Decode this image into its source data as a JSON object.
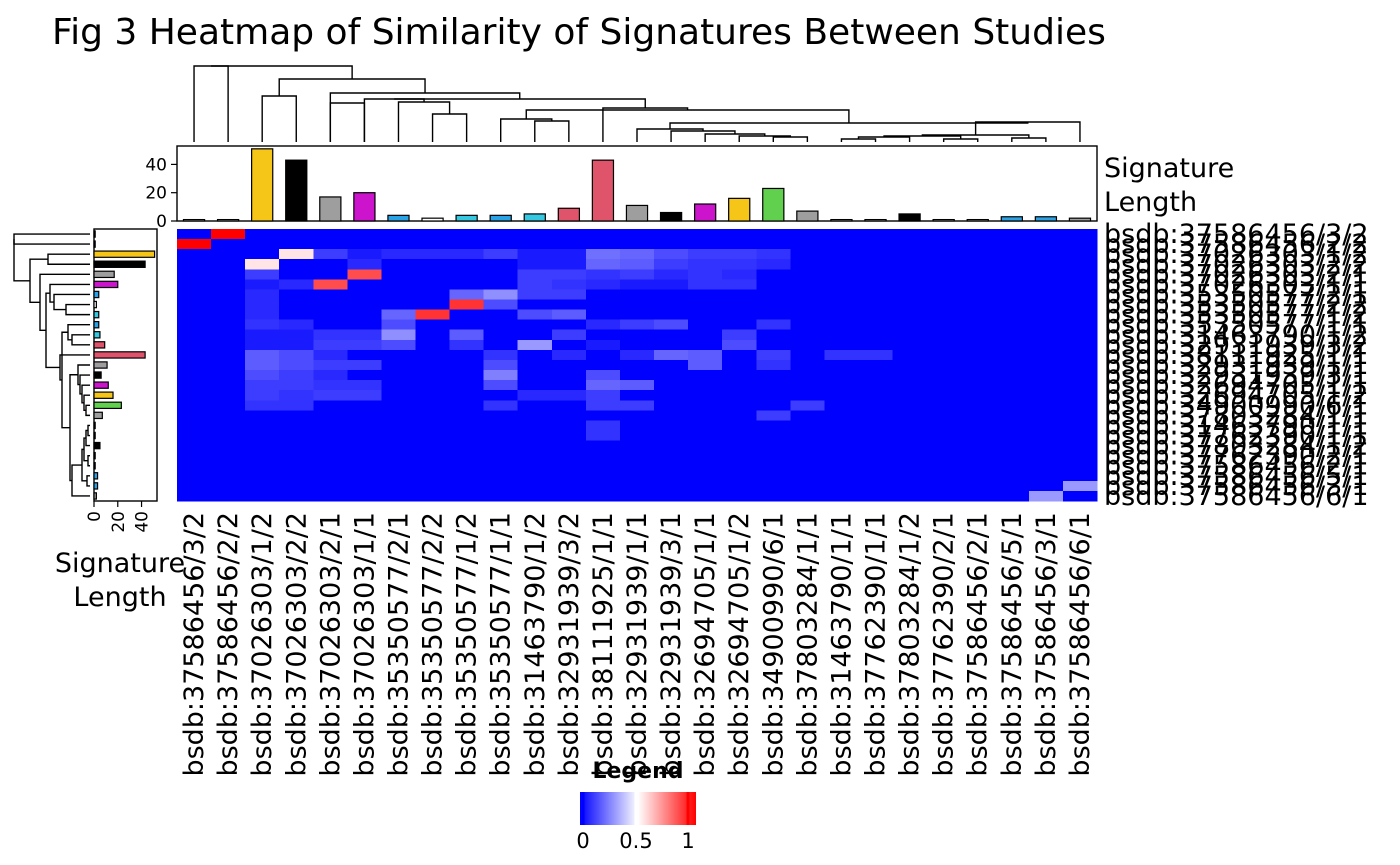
{
  "chart_data": {
    "type": "heatmap",
    "title": "Fig 3 Heatmap of Similarity of Signatures Between Studies",
    "columns": [
      "bsdb:37586456/3/2",
      "bsdb:37586456/2/2",
      "bsdb:37026303/1/2",
      "bsdb:37026303/2/2",
      "bsdb:37026303/2/1",
      "bsdb:37026303/1/1",
      "bsdb:35350577/2/1",
      "bsdb:35350577/2/2",
      "bsdb:35350577/1/2",
      "bsdb:35350577/1/1",
      "bsdb:31463790/1/2",
      "bsdb:32931939/3/2",
      "bsdb:38111925/1/1",
      "bsdb:32931939/1/1",
      "bsdb:32931939/3/1",
      "bsdb:32694705/1/1",
      "bsdb:32694705/1/2",
      "bsdb:34900990/6/1",
      "bsdb:37803284/1/1",
      "bsdb:31463790/1/1",
      "bsdb:37762390/1/1",
      "bsdb:37803284/1/2",
      "bsdb:37762390/2/1",
      "bsdb:37586456/2/1",
      "bsdb:37586456/5/1",
      "bsdb:37586456/3/1",
      "bsdb:37586456/6/1"
    ],
    "rows": [
      "bsdb:37586456/3/2",
      "bsdb:37586456/2/2",
      "bsdb:37026303/1/2",
      "bsdb:37026303/2/2",
      "bsdb:37026303/2/1",
      "bsdb:37026303/1/1",
      "bsdb:35350577/2/1",
      "bsdb:35350577/2/2",
      "bsdb:35350577/1/2",
      "bsdb:35350577/1/1",
      "bsdb:31463790/1/2",
      "bsdb:32931939/3/2",
      "bsdb:38111925/1/1",
      "bsdb:32931939/1/1",
      "bsdb:32931939/3/1",
      "bsdb:32694705/1/1",
      "bsdb:32694705/1/2",
      "bsdb:34900990/6/1",
      "bsdb:37803284/1/1",
      "bsdb:31463790/1/1",
      "bsdb:37762390/1/1",
      "bsdb:37803284/1/2",
      "bsdb:37762390/2/1",
      "bsdb:37586456/2/1",
      "bsdb:37586456/5/1",
      "bsdb:37586456/3/1",
      "bsdb:37586456/6/1"
    ],
    "signature_length": [
      1,
      1,
      51,
      43,
      17,
      20,
      4,
      2,
      4,
      4,
      5,
      9,
      43,
      11,
      6,
      12,
      16,
      23,
      7,
      1,
      1,
      5,
      1,
      1,
      3,
      3,
      2
    ],
    "signature_colors": [
      "#ffffff",
      "#ffffff",
      "#f5c518",
      "#000000",
      "#9e9e9e",
      "#cc14cc",
      "#2aa3e6",
      "#ffffff",
      "#35c8e0",
      "#2aa3e6",
      "#35c8e0",
      "#df536b",
      "#df536b",
      "#9e9e9e",
      "#000000",
      "#cc14cc",
      "#f5c518",
      "#61d04f",
      "#9e9e9e",
      "#ffffff",
      "#ffffff",
      "#000000",
      "#ffffff",
      "#ffffff",
      "#2aa3e6",
      "#2aa3e6",
      "#9e9e9e"
    ],
    "bar_axis": {
      "label": "Signature Length",
      "ticks": [
        0,
        20,
        40
      ],
      "max": 53
    },
    "similarity": [
      [
        0,
        1,
        0,
        0,
        0,
        0,
        0,
        0,
        0,
        0,
        0,
        0,
        0,
        0,
        0,
        0,
        0,
        0,
        0,
        0,
        0,
        0,
        0,
        0,
        0,
        0,
        0
      ],
      [
        1,
        0,
        0,
        0,
        0,
        0,
        0,
        0,
        0,
        0,
        0,
        0,
        0,
        0,
        0,
        0,
        0,
        0,
        0,
        0,
        0,
        0,
        0,
        0,
        0,
        0,
        0
      ],
      [
        0,
        0,
        0,
        0.55,
        0.12,
        0.05,
        0.08,
        0.08,
        0.08,
        0.12,
        0.05,
        0.05,
        0.22,
        0.2,
        0.15,
        0.12,
        0.12,
        0.1,
        0,
        0,
        0,
        0,
        0,
        0,
        0,
        0,
        0
      ],
      [
        0,
        0,
        0.55,
        0,
        0,
        0.08,
        0,
        0,
        0,
        0,
        0.05,
        0.05,
        0.2,
        0.18,
        0.12,
        0.1,
        0.1,
        0.08,
        0,
        0,
        0,
        0,
        0,
        0,
        0,
        0,
        0
      ],
      [
        0,
        0,
        0.12,
        0,
        0,
        0.85,
        0,
        0,
        0,
        0,
        0.12,
        0.12,
        0.1,
        0.12,
        0.08,
        0.1,
        0.08,
        0,
        0,
        0,
        0,
        0,
        0,
        0,
        0,
        0,
        0
      ],
      [
        0,
        0,
        0.05,
        0.08,
        0.85,
        0,
        0,
        0,
        0,
        0,
        0.12,
        0.1,
        0.08,
        0.05,
        0.05,
        0.1,
        0.1,
        0,
        0,
        0,
        0,
        0,
        0,
        0,
        0,
        0,
        0
      ],
      [
        0,
        0,
        0.08,
        0,
        0,
        0,
        0,
        0,
        0.2,
        0.28,
        0.12,
        0.12,
        0,
        0,
        0,
        0,
        0,
        0,
        0,
        0,
        0,
        0,
        0,
        0,
        0,
        0,
        0
      ],
      [
        0,
        0,
        0.08,
        0,
        0,
        0,
        0,
        0,
        0.9,
        0.15,
        0,
        0,
        0,
        0,
        0,
        0,
        0,
        0,
        0,
        0,
        0,
        0,
        0,
        0,
        0,
        0,
        0
      ],
      [
        0,
        0,
        0.08,
        0,
        0,
        0,
        0.2,
        0.9,
        0,
        0,
        0.15,
        0.18,
        0,
        0,
        0,
        0,
        0,
        0,
        0,
        0,
        0,
        0,
        0,
        0,
        0,
        0,
        0
      ],
      [
        0,
        0,
        0.1,
        0.08,
        0,
        0,
        0.15,
        0,
        0,
        0,
        0,
        0,
        0.08,
        0.12,
        0.15,
        0,
        0,
        0.1,
        0,
        0,
        0,
        0,
        0,
        0,
        0,
        0,
        0
      ],
      [
        0,
        0,
        0.05,
        0.05,
        0.1,
        0.1,
        0.28,
        0,
        0.18,
        0,
        0,
        0.12,
        0,
        0,
        0,
        0,
        0.12,
        0,
        0,
        0,
        0,
        0,
        0,
        0,
        0,
        0,
        0
      ],
      [
        0,
        0,
        0.05,
        0.05,
        0.12,
        0.12,
        0.15,
        0,
        0.1,
        0,
        0.3,
        0,
        0.05,
        0,
        0,
        0,
        0.15,
        0,
        0,
        0,
        0,
        0,
        0,
        0,
        0,
        0,
        0
      ],
      [
        0,
        0,
        0.18,
        0.15,
        0.08,
        0,
        0,
        0,
        0,
        0.1,
        0,
        0.08,
        0,
        0.08,
        0.2,
        0.18,
        0,
        0.12,
        0,
        0.1,
        0.1,
        0,
        0,
        0,
        0,
        0,
        0
      ],
      [
        0,
        0,
        0.18,
        0.15,
        0.12,
        0.12,
        0,
        0,
        0,
        0.15,
        0,
        0,
        0,
        0,
        0,
        0.18,
        0,
        0.1,
        0,
        0,
        0,
        0,
        0,
        0,
        0,
        0,
        0
      ],
      [
        0,
        0,
        0.15,
        0.12,
        0.08,
        0,
        0,
        0,
        0,
        0.25,
        0,
        0,
        0.15,
        0,
        0,
        0,
        0,
        0,
        0,
        0,
        0,
        0,
        0,
        0,
        0,
        0,
        0
      ],
      [
        0,
        0,
        0.12,
        0.12,
        0.1,
        0.1,
        0,
        0,
        0,
        0.15,
        0,
        0,
        0.2,
        0.18,
        0,
        0,
        0,
        0,
        0,
        0,
        0,
        0,
        0,
        0,
        0,
        0,
        0
      ],
      [
        0,
        0,
        0.12,
        0.1,
        0.12,
        0.12,
        0,
        0,
        0,
        0,
        0.08,
        0.08,
        0.12,
        0,
        0,
        0,
        0,
        0,
        0,
        0,
        0,
        0,
        0,
        0,
        0,
        0,
        0
      ],
      [
        0,
        0,
        0.1,
        0.1,
        0,
        0,
        0,
        0,
        0,
        0.1,
        0,
        0,
        0.12,
        0.12,
        0,
        0,
        0,
        0,
        0.12,
        0,
        0,
        0,
        0,
        0,
        0,
        0,
        0
      ],
      [
        0,
        0,
        0,
        0,
        0,
        0,
        0,
        0,
        0,
        0,
        0,
        0,
        0,
        0,
        0,
        0,
        0,
        0.12,
        0,
        0,
        0,
        0,
        0,
        0,
        0,
        0,
        0
      ],
      [
        0,
        0,
        0,
        0,
        0,
        0,
        0,
        0,
        0,
        0,
        0,
        0,
        0.1,
        0,
        0,
        0,
        0,
        0,
        0,
        0,
        0,
        0,
        0,
        0,
        0,
        0,
        0
      ],
      [
        0,
        0,
        0,
        0,
        0,
        0,
        0,
        0,
        0,
        0,
        0,
        0,
        0.1,
        0,
        0,
        0,
        0,
        0,
        0,
        0,
        0,
        0,
        0,
        0,
        0,
        0,
        0
      ],
      [
        0,
        0,
        0,
        0,
        0,
        0,
        0,
        0,
        0,
        0,
        0,
        0,
        0,
        0,
        0,
        0,
        0,
        0,
        0,
        0,
        0,
        0,
        0,
        0,
        0,
        0,
        0
      ],
      [
        0,
        0,
        0,
        0,
        0,
        0,
        0,
        0,
        0,
        0,
        0,
        0,
        0,
        0,
        0,
        0,
        0,
        0,
        0,
        0,
        0,
        0,
        0,
        0,
        0,
        0,
        0
      ],
      [
        0,
        0,
        0,
        0,
        0,
        0,
        0,
        0,
        0,
        0,
        0,
        0,
        0,
        0,
        0,
        0,
        0,
        0,
        0,
        0,
        0,
        0,
        0,
        0,
        0,
        0,
        0
      ],
      [
        0,
        0,
        0,
        0,
        0,
        0,
        0,
        0,
        0,
        0,
        0,
        0,
        0,
        0,
        0,
        0,
        0,
        0,
        0,
        0,
        0,
        0,
        0,
        0,
        0,
        0,
        0
      ],
      [
        0,
        0,
        0,
        0,
        0,
        0,
        0,
        0,
        0,
        0,
        0,
        0,
        0,
        0,
        0,
        0,
        0,
        0,
        0,
        0,
        0,
        0,
        0,
        0,
        0,
        0,
        0.3
      ],
      [
        0,
        0,
        0,
        0,
        0,
        0,
        0,
        0,
        0,
        0,
        0,
        0,
        0,
        0,
        0,
        0,
        0,
        0,
        0,
        0,
        0,
        0,
        0,
        0,
        0,
        0.3,
        0
      ]
    ],
    "legend": {
      "title": "Legend",
      "ticks": [
        "0",
        "0.5",
        "1"
      ],
      "range": [
        0,
        1
      ],
      "colors": {
        "low": "#0000ff",
        "mid": "#ffffff",
        "high": "#ff0000"
      }
    },
    "dendrogram": "hierarchical clustering, shown on top (columns) and left (rows)"
  }
}
